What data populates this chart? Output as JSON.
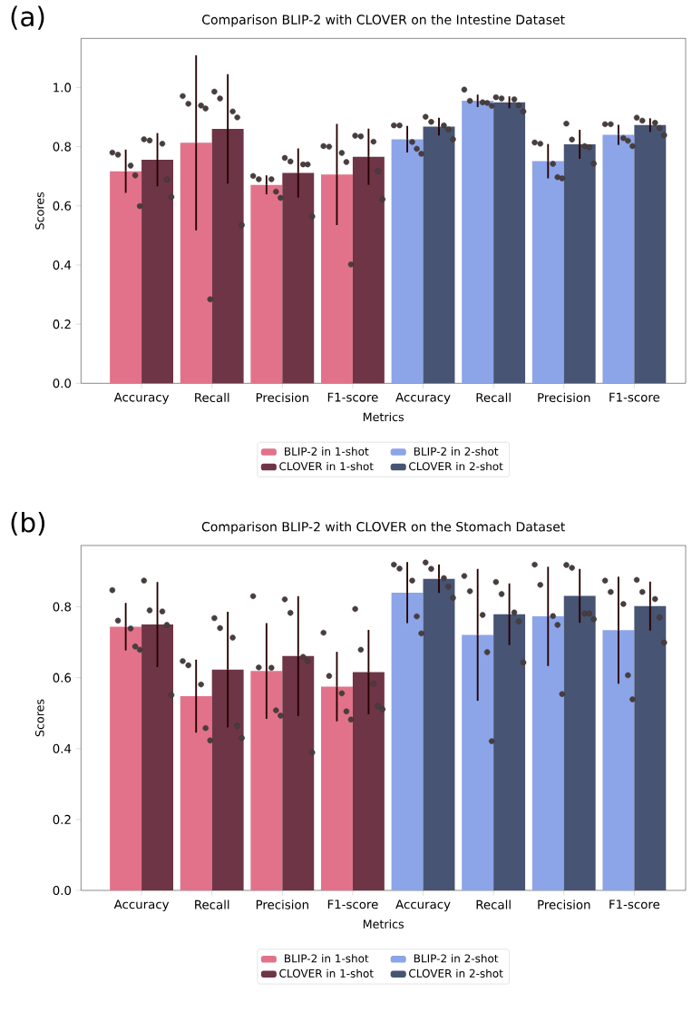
{
  "chart_data": [
    {
      "type": "bar",
      "title": "Comparison BLIP-2 with CLOVER on the Intestine Dataset",
      "xlabel": "Metrics",
      "ylabel": "Scores",
      "annotations": [
        "(a)"
      ],
      "legend": "bottom",
      "marker": "circle",
      "ylim": [
        0,
        1.166
      ],
      "yticks": [
        {
          "value": 0,
          "label": "0.0"
        },
        {
          "value": 0.2,
          "label": "0.2"
        },
        {
          "value": 0.4,
          "label": "0.4"
        },
        {
          "value": 0.6,
          "label": "0.6"
        },
        {
          "value": 0.8,
          "label": "0.8"
        },
        {
          "value": 1.0,
          "label": "1.0"
        }
      ],
      "categories": [
        "Accuracy",
        "Recall",
        "Precision",
        "F1-score",
        "Accuracy",
        "Recall",
        "Precision",
        "F1-score"
      ],
      "series": [
        {
          "name": "BLIP-2 in 1-shot",
          "color": "#e2728a",
          "values": [
            0.717,
            0.813,
            0.671,
            0.706,
            null,
            null,
            null,
            null
          ],
          "errors": [
            0.073,
            0.296,
            0.032,
            0.171,
            null,
            null,
            null,
            null
          ]
        },
        {
          "name": "CLOVER in 1-shot",
          "color": "#6e3546",
          "values": [
            0.756,
            0.86,
            0.711,
            0.766,
            null,
            null,
            null,
            null
          ],
          "errors": [
            0.09,
            0.185,
            0.083,
            0.095,
            null,
            null,
            null,
            null
          ]
        },
        {
          "name": "BLIP-2 in 2-shot",
          "color": "#8ca4e8",
          "values": [
            null,
            null,
            null,
            null,
            0.825,
            0.955,
            0.751,
            0.84
          ],
          "errors": [
            null,
            null,
            null,
            null,
            0.045,
            0.021,
            0.058,
            0.034
          ]
        },
        {
          "name": "CLOVER in 2-shot",
          "color": "#475473",
          "values": [
            null,
            null,
            null,
            null,
            0.868,
            0.95,
            0.808,
            0.873
          ],
          "errors": [
            null,
            null,
            null,
            null,
            0.03,
            0.02,
            0.049,
            0.023
          ]
        },
        {
          "type": "scatter",
          "color": "#4a3d3d",
          "values": [
            0.78,
            0.971,
            0.701,
            0.802,
            0.872,
            0.993,
            0.814,
            0.876
          ]
        },
        {
          "type": "scatter",
          "color": "#4a3d3d",
          "values": [
            0.825,
            0.986,
            0.762,
            0.837,
            0.901,
            0.967,
            0.878,
            0.898
          ]
        },
        {
          "type": "scatter",
          "color": "#4a3d3d",
          "values": [
            0.773,
            0.945,
            0.69,
            0.8,
            0.872,
            0.955,
            0.81,
            0.876
          ]
        },
        {
          "type": "scatter",
          "color": "#4a3d3d",
          "values": [
            0.821,
            0.963,
            0.75,
            0.835,
            0.884,
            0.963,
            0.824,
            0.888
          ]
        },
        {
          "type": "scatter",
          "color": "#4a3d3d",
          "values": [
            0.736,
            0.939,
            0.69,
            0.779,
            0.816,
            0.95,
            0.742,
            0.829
          ]
        },
        {
          "type": "scatter",
          "color": "#4a3d3d",
          "values": [
            0.81,
            0.919,
            0.74,
            0.817,
            0.872,
            0.96,
            0.802,
            0.881
          ]
        },
        {
          "type": "scatter",
          "color": "#4a3d3d",
          "values": [
            0.703,
            0.929,
            0.648,
            0.748,
            0.793,
            0.948,
            0.697,
            0.82
          ]
        },
        {
          "type": "scatter",
          "color": "#4a3d3d",
          "values": [
            0.689,
            0.899,
            0.74,
            0.717,
            0.858,
            0.94,
            0.798,
            0.863
          ]
        },
        {
          "type": "scatter",
          "color": "#4a3d3d",
          "values": [
            0.599,
            0.284,
            0.627,
            0.402,
            0.776,
            0.938,
            0.693,
            0.802
          ]
        },
        {
          "type": "scatter",
          "color": "#4a3d3d",
          "values": [
            0.63,
            0.535,
            0.564,
            0.622,
            0.825,
            0.919,
            0.743,
            0.839
          ]
        }
      ]
    },
    {
      "type": "bar",
      "title": "Comparison BLIP-2 with CLOVER on the Stomach Dataset",
      "xlabel": "Metrics",
      "ylabel": "Scores",
      "annotations": [
        "(b)"
      ],
      "legend": "bottom",
      "marker": "circle",
      "ylim": [
        0,
        0.973
      ],
      "yticks": [
        {
          "value": 0,
          "label": "0.0"
        },
        {
          "value": 0.2,
          "label": "0.2"
        },
        {
          "value": 0.4,
          "label": "0.4"
        },
        {
          "value": 0.6,
          "label": "0.6"
        },
        {
          "value": 0.8,
          "label": "0.8"
        }
      ],
      "categories": [
        "Accuracy",
        "Recall",
        "Precision",
        "F1-score",
        "Accuracy",
        "Recall",
        "Precision",
        "F1-score"
      ],
      "series": [
        {
          "name": "BLIP-2 in 1-shot",
          "color": "#e2728a",
          "values": [
            0.744,
            0.548,
            0.619,
            0.575,
            null,
            null,
            null,
            null
          ],
          "errors": [
            0.067,
            0.103,
            0.135,
            0.098,
            null,
            null,
            null,
            null
          ]
        },
        {
          "name": "CLOVER in 1-shot",
          "color": "#6e3546",
          "values": [
            0.75,
            0.623,
            0.661,
            0.616,
            null,
            null,
            null,
            null
          ],
          "errors": [
            0.12,
            0.163,
            0.169,
            0.119,
            null,
            null,
            null,
            null
          ]
        },
        {
          "name": "BLIP-2 in 2-shot",
          "color": "#8ca4e8",
          "values": [
            null,
            null,
            null,
            null,
            0.84,
            0.721,
            0.773,
            0.734
          ],
          "errors": [
            null,
            null,
            null,
            null,
            0.086,
            0.186,
            0.14,
            0.151
          ]
        },
        {
          "name": "CLOVER in 2-shot",
          "color": "#475473",
          "values": [
            null,
            null,
            null,
            null,
            0.879,
            0.779,
            0.831,
            0.802
          ],
          "errors": [
            null,
            null,
            null,
            null,
            0.04,
            0.087,
            0.076,
            0.069
          ]
        },
        {
          "type": "scatter",
          "color": "#4a3d3d",
          "values": [
            0.847,
            0.647,
            0.83,
            0.727,
            0.919,
            0.887,
            0.919,
            0.874
          ]
        },
        {
          "type": "scatter",
          "color": "#4a3d3d",
          "values": [
            0.874,
            0.768,
            0.821,
            0.794,
            0.925,
            0.87,
            0.918,
            0.876
          ]
        },
        {
          "type": "scatter",
          "color": "#4a3d3d",
          "values": [
            0.761,
            0.635,
            0.629,
            0.605,
            0.908,
            0.844,
            0.862,
            0.842
          ]
        },
        {
          "type": "scatter",
          "color": "#4a3d3d",
          "values": [
            0.79,
            0.74,
            0.783,
            0.679,
            0.907,
            0.836,
            0.91,
            0.842
          ]
        },
        {
          "type": "scatter",
          "color": "#4a3d3d",
          "values": [
            0.739,
            0.581,
            0.628,
            0.556,
            0.874,
            0.777,
            0.774,
            0.808
          ]
        },
        {
          "type": "scatter",
          "color": "#4a3d3d",
          "values": [
            0.787,
            0.713,
            0.659,
            0.583,
            0.881,
            0.784,
            0.781,
            0.822
          ]
        },
        {
          "type": "scatter",
          "color": "#4a3d3d",
          "values": [
            0.688,
            0.458,
            0.508,
            0.505,
            0.773,
            0.672,
            0.749,
            0.607
          ]
        },
        {
          "type": "scatter",
          "color": "#4a3d3d",
          "values": [
            0.749,
            0.464,
            0.647,
            0.52,
            0.857,
            0.759,
            0.781,
            0.77
          ]
        },
        {
          "type": "scatter",
          "color": "#4a3d3d",
          "values": [
            0.679,
            0.423,
            0.493,
            0.482,
            0.725,
            0.421,
            0.554,
            0.539
          ]
        },
        {
          "type": "scatter",
          "color": "#4a3d3d",
          "values": [
            0.551,
            0.43,
            0.389,
            0.511,
            0.825,
            0.643,
            0.765,
            0.699
          ]
        }
      ]
    }
  ]
}
